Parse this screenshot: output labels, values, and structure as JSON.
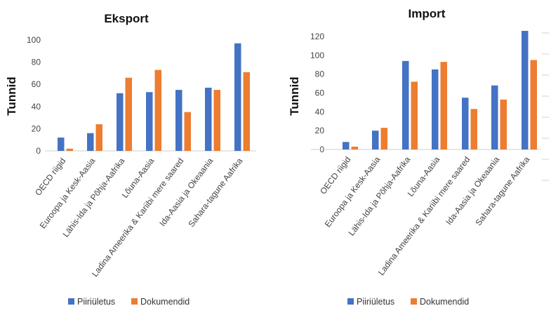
{
  "chart_data": [
    {
      "type": "bar",
      "title": "Eksport",
      "xlabel": "",
      "ylabel": "Tunnid",
      "ylim": [
        0,
        100
      ],
      "yticks": [
        0,
        20,
        40,
        60,
        80,
        100
      ],
      "grid": false,
      "categories": [
        "OECD riigid",
        "Euroopa ja Kesk-Aasia",
        "Lähis-Ida ja Põhja-Aafrika",
        "Lõuna-Aasia",
        "Ladina Ameerika & Kariibi mere saared",
        "Ida-Aasia ja Okeaania",
        "Sahara-tagune Aafrika"
      ],
      "series": [
        {
          "name": "Piiriületus",
          "color": "#4472C4",
          "values": [
            12,
            16,
            52,
            53,
            55,
            57,
            97
          ]
        },
        {
          "name": "Dokumendid",
          "color": "#ED7D31",
          "values": [
            2,
            24,
            66,
            73,
            35,
            55,
            71
          ]
        }
      ]
    },
    {
      "type": "bar",
      "title": "Import",
      "xlabel": "",
      "ylabel": "Tunnid",
      "ylim": [
        0,
        120
      ],
      "yticks": [
        0,
        20,
        40,
        60,
        80,
        100,
        120
      ],
      "grid": false,
      "categories": [
        "OECD riigid",
        "Euroopa ja Kesk-Aasia",
        "Lähis-Ida ja Põhja-Aafrika",
        "Lõuna-Aasia",
        "Ladina Ameerika & Kariibi mere saared",
        "Ida-Aasia ja Okeaania",
        "Sahara-tagune Aafrika"
      ],
      "series": [
        {
          "name": "Piiriületus",
          "color": "#4472C4",
          "values": [
            8,
            20,
            94,
            85,
            55,
            68,
            126
          ]
        },
        {
          "name": "Dokumendid",
          "color": "#ED7D31",
          "values": [
            3,
            23,
            72,
            93,
            43,
            53,
            95
          ]
        }
      ]
    }
  ],
  "legends": [
    {
      "position": "bottom",
      "items": [
        {
          "label": "Piiriületus",
          "color": "#4472C4"
        },
        {
          "label": "Dokumendid",
          "color": "#ED7D31"
        }
      ]
    },
    {
      "position": "bottom",
      "items": [
        {
          "label": "Piiriületus",
          "color": "#4472C4"
        },
        {
          "label": "Dokumendid",
          "color": "#ED7D31"
        }
      ]
    }
  ]
}
